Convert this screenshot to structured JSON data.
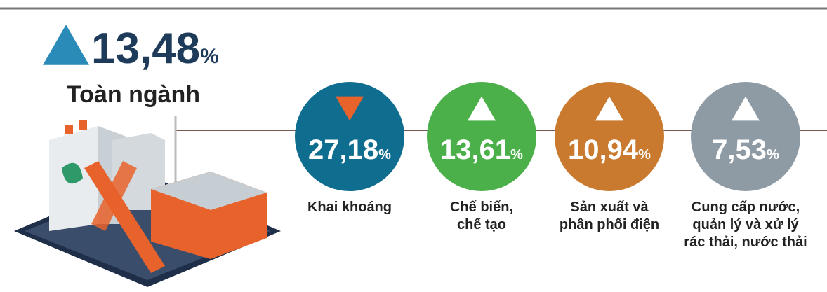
{
  "total": {
    "value": "13,48",
    "unit": "%",
    "label": "Toàn ngành",
    "direction": "up",
    "color": "#2a8ab8"
  },
  "sectors": [
    {
      "value": "27,18",
      "unit": "%",
      "label": [
        "Khai khoáng"
      ],
      "direction": "down",
      "color": "#0f6d8f",
      "arrow_color": "#e8622c"
    },
    {
      "value": "13,61",
      "unit": "%",
      "label": [
        "Chế biến,",
        "chế tạo"
      ],
      "direction": "up",
      "color": "#4bb04a",
      "arrow_color": "#ffffff"
    },
    {
      "value": "10,94",
      "unit": "%",
      "label": [
        "Sản xuất và",
        "phân phối điện"
      ],
      "direction": "up",
      "color": "#c97a2e",
      "arrow_color": "#ffffff"
    },
    {
      "value": "7,53",
      "unit": "%",
      "label": [
        "Cung cấp nước,",
        "quản lý và xử lý",
        "rác thải, nước thải"
      ],
      "direction": "up",
      "color": "#8e9ba5",
      "arrow_color": "#ffffff"
    }
  ]
}
